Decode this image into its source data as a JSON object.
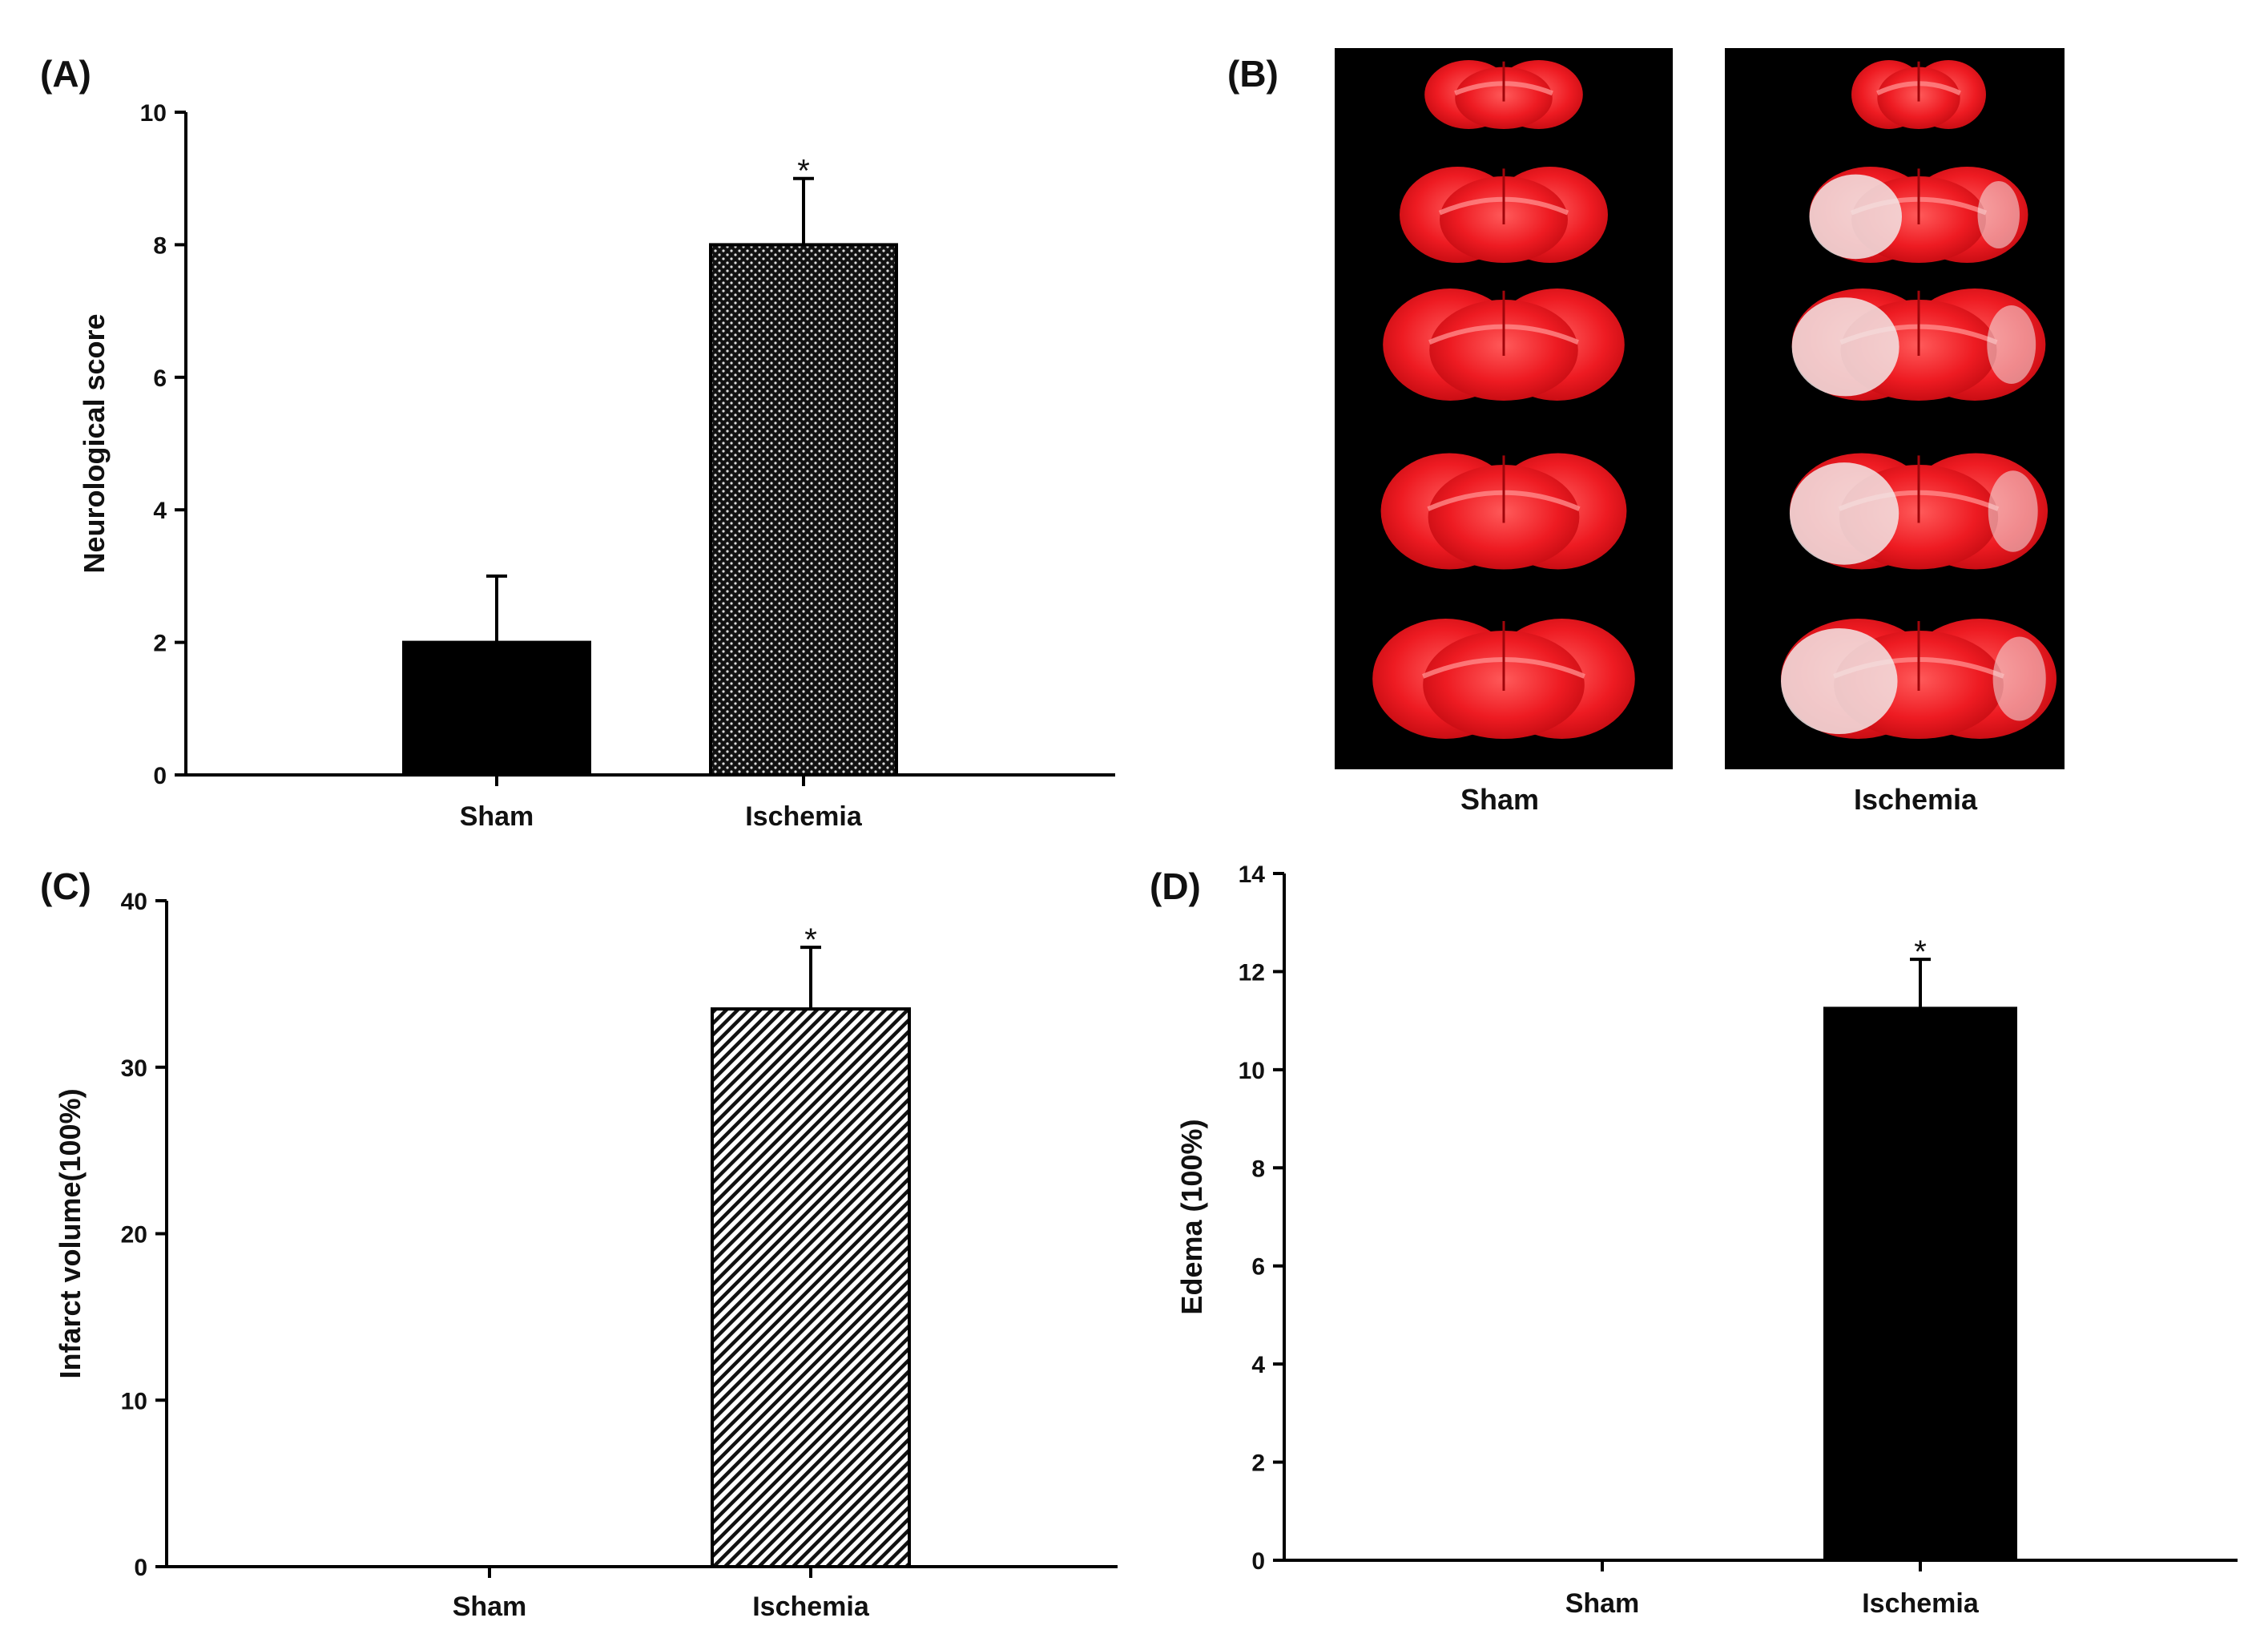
{
  "chart_data": [
    {
      "id": "A",
      "panel_label": "(A)",
      "type": "bar",
      "categories": [
        "Sham",
        "Ischemia"
      ],
      "values": [
        2,
        8
      ],
      "errors": [
        1,
        1
      ],
      "significance": [
        "",
        "*"
      ],
      "fill_patterns": [
        "solid",
        "dots"
      ],
      "xlabel": "",
      "ylabel": "Neurological score",
      "ylim": [
        0,
        10
      ],
      "yticks": [
        0,
        2,
        4,
        6,
        8,
        10
      ]
    },
    {
      "id": "C",
      "panel_label": "(C)",
      "type": "bar",
      "categories": [
        "Sham",
        "Ischemia"
      ],
      "values": [
        0,
        33.5
      ],
      "errors": [
        0,
        3.7
      ],
      "significance": [
        "",
        "*"
      ],
      "fill_patterns": [
        "hatch",
        "hatch"
      ],
      "xlabel": "",
      "ylabel": "Infarct volume(100%)",
      "ylim": [
        0,
        40
      ],
      "yticks": [
        0,
        10,
        20,
        30,
        40
      ]
    },
    {
      "id": "D",
      "panel_label": "(D)",
      "type": "bar",
      "categories": [
        "Sham",
        "Ischemia"
      ],
      "values": [
        0,
        11.25
      ],
      "errors": [
        0,
        1.0
      ],
      "significance": [
        "",
        "*"
      ],
      "fill_patterns": [
        "solid",
        "solid"
      ],
      "xlabel": "",
      "ylabel": "Edema (100%)",
      "ylim": [
        0,
        14
      ],
      "yticks": [
        0,
        2,
        4,
        6,
        8,
        10,
        12,
        14
      ]
    }
  ],
  "panel_b": {
    "panel_label": "(B)",
    "groups": [
      "Sham",
      "Ischemia"
    ],
    "slice_count": 5,
    "colors": {
      "background": "#000000",
      "tissue_red": "#e8141e",
      "tissue_highlight": "#ff6a6a",
      "infarct_pale": "#f2e6e6"
    }
  }
}
